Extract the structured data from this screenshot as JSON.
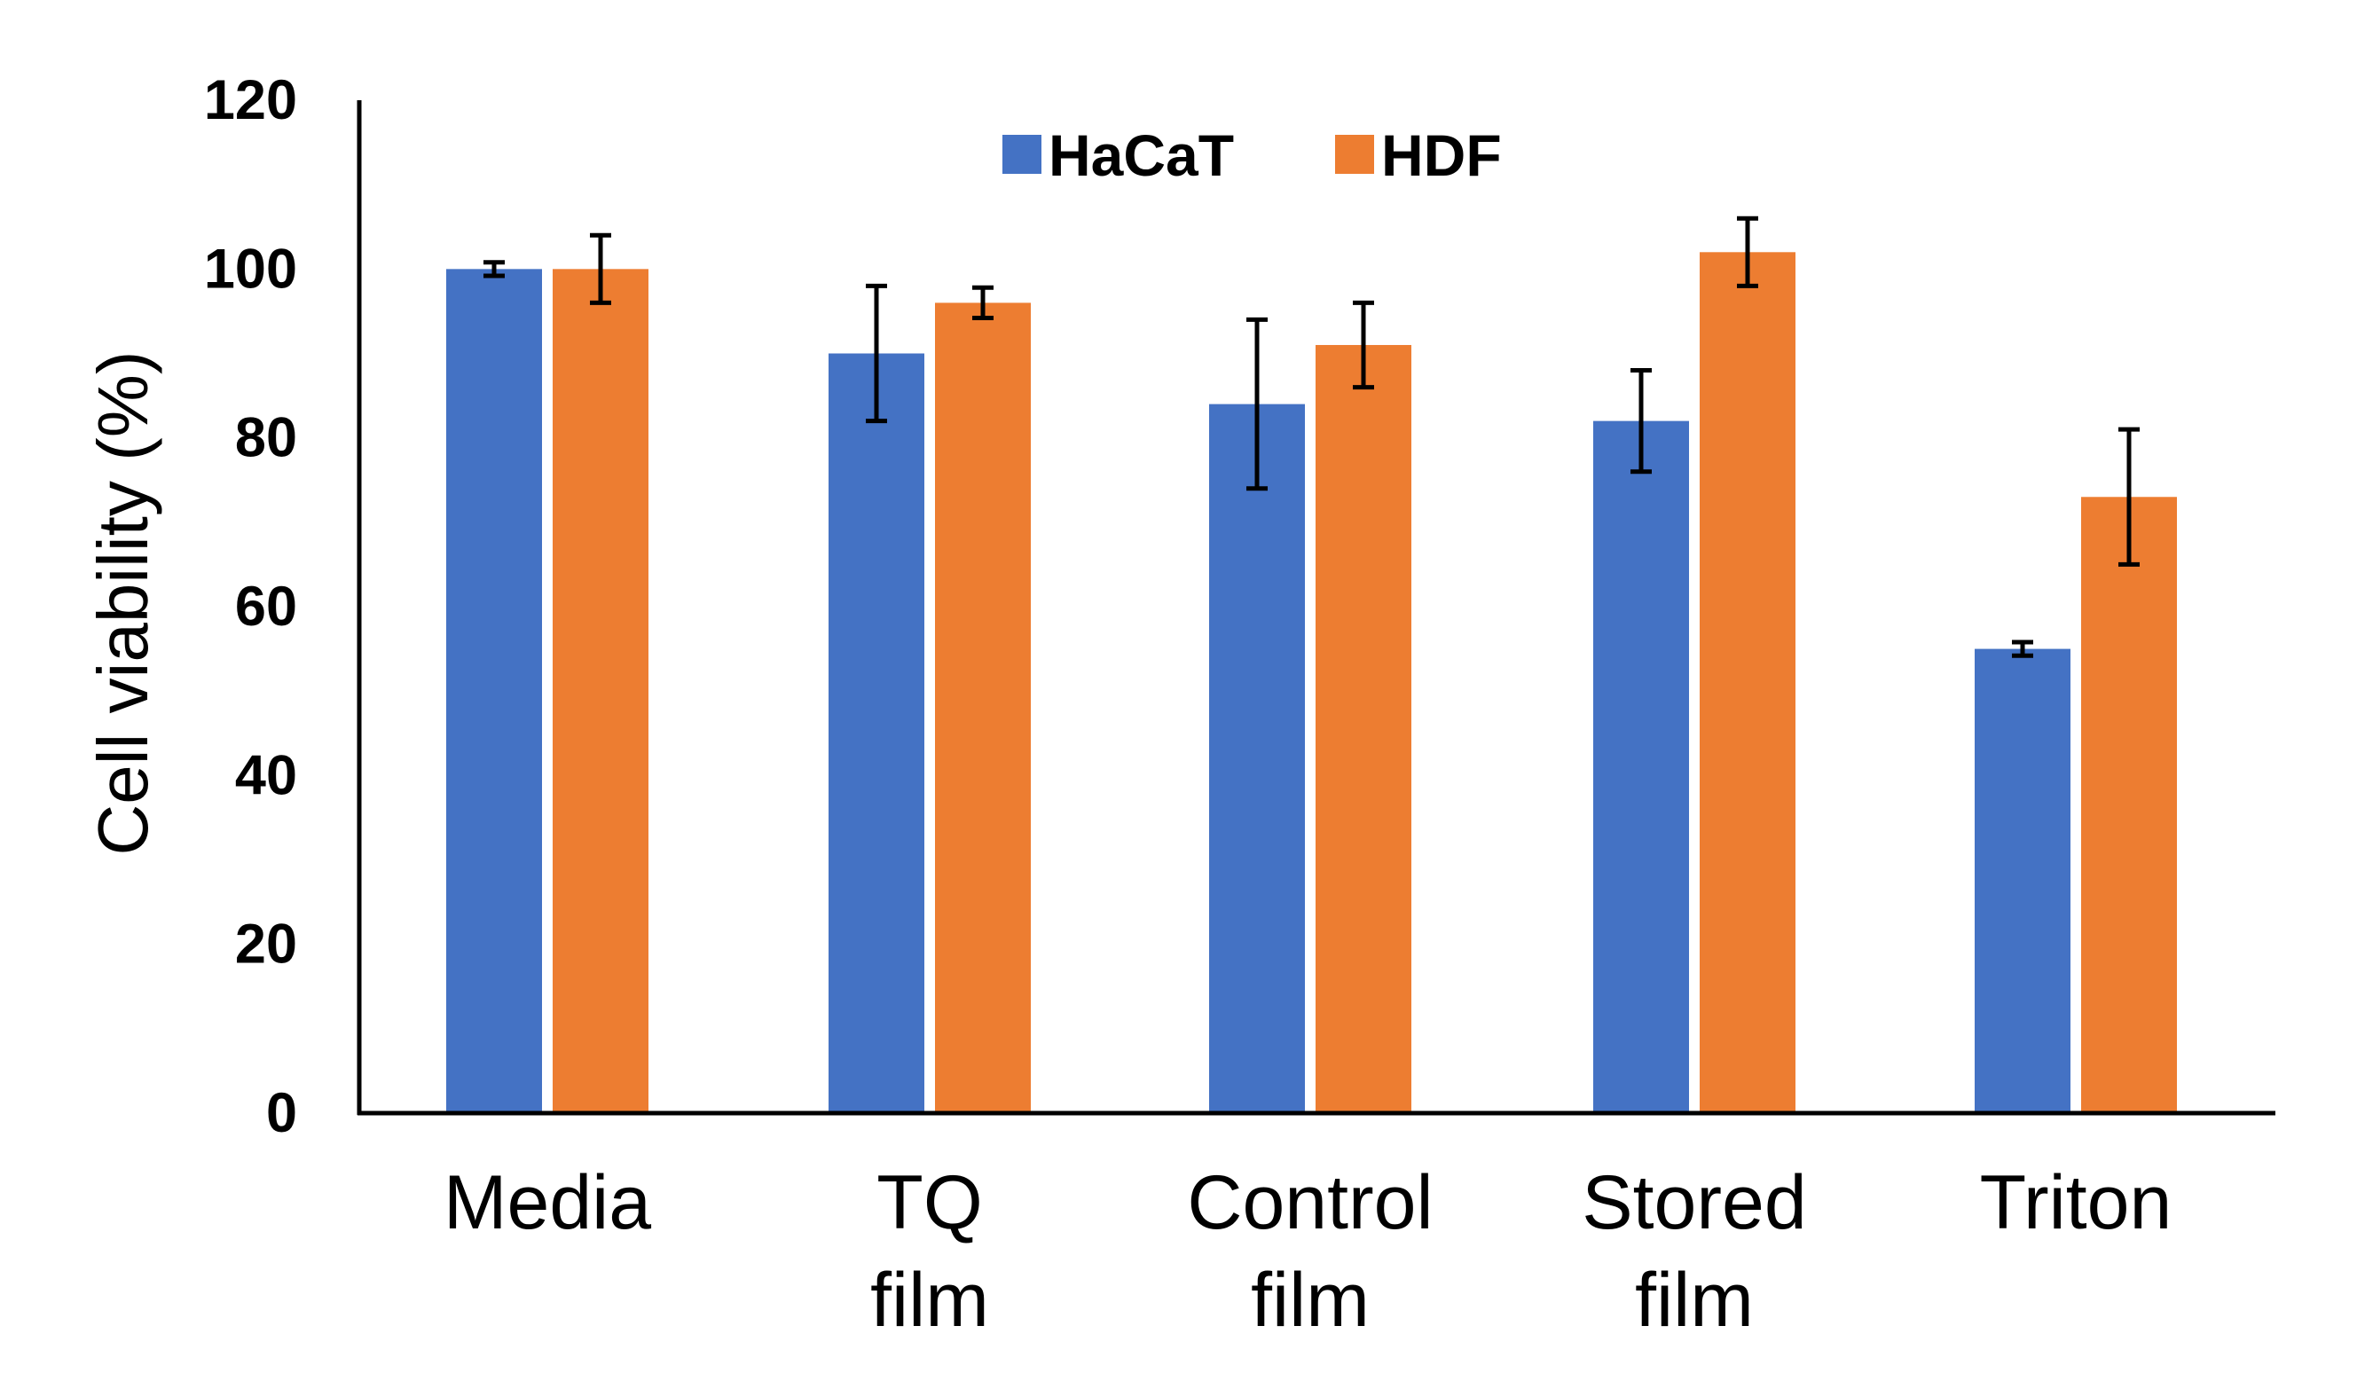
{
  "chart_data": {
    "type": "bar",
    "title": "",
    "xlabel": "",
    "ylabel": "Cell viability (%)",
    "ylim": [
      0,
      120
    ],
    "yticks": [
      "0",
      "20",
      "40",
      "60",
      "80",
      "100",
      "120"
    ],
    "categories": [
      [
        "Media"
      ],
      [
        "TQ",
        "film"
      ],
      [
        "Control",
        "film"
      ],
      [
        "Stored",
        "film"
      ],
      [
        "Triton"
      ]
    ],
    "series": [
      {
        "name": "HaCaT",
        "color": "#4472C4",
        "values": [
          100,
          90,
          84,
          82,
          55
        ],
        "errors": [
          0.8,
          8,
          10,
          6,
          0.8
        ]
      },
      {
        "name": "HDF",
        "color": "#ED7D31",
        "values": [
          100,
          96,
          91,
          102,
          73
        ],
        "errors": [
          4,
          1.8,
          5,
          4,
          8
        ]
      }
    ],
    "legend": "top-center",
    "grid": false
  }
}
